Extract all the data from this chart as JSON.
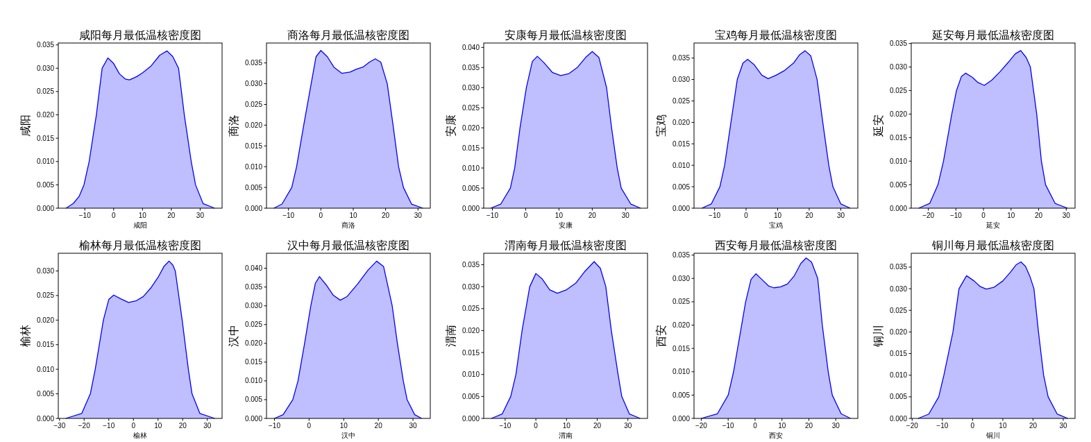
{
  "chart_data": [
    {
      "type": "area",
      "title": "咸阳每月最低温核密度图",
      "xlabel": "咸阳",
      "ylabel": "咸阳",
      "xlim": [
        -19.2,
        37.6
      ],
      "ylim": [
        0,
        0.0354
      ],
      "xticks": [
        -10,
        0,
        10,
        20,
        30
      ],
      "yticks": [
        {
          "value": 0,
          "label": "0.000"
        },
        {
          "value": 0.005,
          "label": "0.005"
        },
        {
          "value": 0.01,
          "label": "0.010"
        },
        {
          "value": 0.015,
          "label": "0.015"
        },
        {
          "value": 0.02,
          "label": "0.020"
        },
        {
          "value": 0.025,
          "label": "0.025"
        },
        {
          "value": 0.03,
          "label": "0.030"
        },
        {
          "value": 0.035,
          "label": "0.035"
        }
      ],
      "x": [
        -16.5,
        -14,
        -12,
        -10.3,
        -8.5,
        -7,
        -6,
        -5,
        -4,
        -2,
        0,
        2,
        4,
        5.5,
        8,
        10,
        13,
        16,
        18.5,
        20.5,
        22.5,
        24.5,
        26.9,
        28.4,
        31,
        35
      ],
      "series": [
        {
          "color": "#0000ff",
          "values": [
            0,
            0.001,
            0.0025,
            0.005,
            0.01,
            0.016,
            0.02,
            0.025,
            0.03,
            0.0322,
            0.031,
            0.0288,
            0.0277,
            0.0275,
            0.0282,
            0.029,
            0.0305,
            0.0328,
            0.0337,
            0.0325,
            0.03,
            0.02,
            0.01,
            0.005,
            0.001,
            0
          ]
        }
      ]
    },
    {
      "type": "area",
      "title": "商洛每月最低温核密度图",
      "xlabel": "商洛",
      "ylabel": "商洛",
      "xlim": [
        -16.8,
        33.8
      ],
      "ylim": [
        0,
        0.0398
      ],
      "xticks": [
        -10,
        0,
        10,
        20,
        30
      ],
      "yticks": [
        {
          "value": 0,
          "label": "0.000"
        },
        {
          "value": 0.005,
          "label": "0.005"
        },
        {
          "value": 0.01,
          "label": "0.010"
        },
        {
          "value": 0.015,
          "label": "0.015"
        },
        {
          "value": 0.02,
          "label": "0.020"
        },
        {
          "value": 0.025,
          "label": "0.025"
        },
        {
          "value": 0.03,
          "label": "0.030"
        },
        {
          "value": 0.035,
          "label": "0.035"
        }
      ],
      "x": [
        -14.5,
        -12,
        -9,
        -7.5,
        -5.3,
        -3,
        -1.5,
        0,
        2,
        4,
        6.5,
        9,
        11,
        13,
        15,
        16.8,
        18.5,
        20.5,
        22.3,
        24,
        25.5,
        28,
        31.5
      ],
      "series": [
        {
          "color": "#0000ff",
          "values": [
            0,
            0.001,
            0.005,
            0.01,
            0.02,
            0.03,
            0.0365,
            0.038,
            0.0365,
            0.034,
            0.0325,
            0.0328,
            0.0335,
            0.034,
            0.0352,
            0.036,
            0.0352,
            0.03,
            0.02,
            0.01,
            0.005,
            0.001,
            0
          ]
        }
      ]
    },
    {
      "type": "area",
      "title": "安康每月最低温核密度图",
      "xlabel": "安康",
      "ylabel": "安康",
      "xlim": [
        -12.6,
        36.6
      ],
      "ylim": [
        0,
        0.0411
      ],
      "xticks": [
        -10,
        0,
        10,
        20,
        30
      ],
      "yticks": [
        {
          "value": 0,
          "label": "0.000"
        },
        {
          "value": 0.005,
          "label": "0.005"
        },
        {
          "value": 0.01,
          "label": "0.010"
        },
        {
          "value": 0.015,
          "label": "0.015"
        },
        {
          "value": 0.02,
          "label": "0.020"
        },
        {
          "value": 0.025,
          "label": "0.025"
        },
        {
          "value": 0.03,
          "label": "0.030"
        },
        {
          "value": 0.035,
          "label": "0.035"
        },
        {
          "value": 0.04,
          "label": "0.040"
        }
      ],
      "x": [
        -10.5,
        -7.5,
        -4.6,
        -3.3,
        -1.7,
        0.2,
        2,
        3.5,
        5.5,
        8,
        10.5,
        13,
        15.5,
        18,
        20,
        22,
        24.3,
        25.8,
        27.5,
        28.7,
        31.6,
        34.5
      ],
      "series": [
        {
          "color": "#0000ff",
          "values": [
            0,
            0.001,
            0.005,
            0.01,
            0.02,
            0.03,
            0.0365,
            0.0378,
            0.0362,
            0.0338,
            0.033,
            0.0335,
            0.035,
            0.0375,
            0.039,
            0.0375,
            0.03,
            0.02,
            0.01,
            0.005,
            0.001,
            0
          ]
        }
      ]
    },
    {
      "type": "area",
      "title": "宝鸡每月最低温核密度图",
      "xlabel": "宝鸡",
      "ylabel": "宝鸡",
      "xlim": [
        -16.5,
        35.4
      ],
      "ylim": [
        0,
        0.0385
      ],
      "xticks": [
        -10,
        0,
        10,
        20,
        30
      ],
      "yticks": [
        {
          "value": 0,
          "label": "0.000"
        },
        {
          "value": 0.005,
          "label": "0.005"
        },
        {
          "value": 0.01,
          "label": "0.010"
        },
        {
          "value": 0.015,
          "label": "0.015"
        },
        {
          "value": 0.02,
          "label": "0.020"
        },
        {
          "value": 0.025,
          "label": "0.025"
        },
        {
          "value": 0.03,
          "label": "0.030"
        },
        {
          "value": 0.035,
          "label": "0.035"
        }
      ],
      "x": [
        -14,
        -11,
        -8.3,
        -6.8,
        -4.8,
        -2.8,
        -1,
        0.5,
        2.5,
        5,
        7,
        9.5,
        12,
        15,
        17,
        18.7,
        20.5,
        22.5,
        24.3,
        26.2,
        27.5,
        30,
        33
      ],
      "series": [
        {
          "color": "#0000ff",
          "values": [
            0,
            0.001,
            0.005,
            0.01,
            0.02,
            0.03,
            0.0338,
            0.0347,
            0.0335,
            0.031,
            0.0302,
            0.031,
            0.032,
            0.0338,
            0.0358,
            0.0367,
            0.0355,
            0.03,
            0.02,
            0.01,
            0.005,
            0.001,
            0
          ]
        }
      ]
    },
    {
      "type": "area",
      "title": "延安每月最低温核密度图",
      "xlabel": "延安",
      "ylabel": "延安",
      "xlim": [
        -26.2,
        33.2
      ],
      "ylim": [
        0,
        0.0351
      ],
      "xticks": [
        -20,
        -10,
        0,
        10,
        20,
        30
      ],
      "yticks": [
        {
          "value": 0,
          "label": "0.000"
        },
        {
          "value": 0.005,
          "label": "0.005"
        },
        {
          "value": 0.01,
          "label": "0.010"
        },
        {
          "value": 0.015,
          "label": "0.015"
        },
        {
          "value": 0.02,
          "label": "0.020"
        },
        {
          "value": 0.025,
          "label": "0.025"
        },
        {
          "value": 0.03,
          "label": "0.030"
        },
        {
          "value": 0.035,
          "label": "0.035"
        }
      ],
      "x": [
        -23.5,
        -19.5,
        -16.5,
        -14.5,
        -11.5,
        -9.8,
        -8,
        -6.5,
        -4,
        -2,
        0.3,
        3,
        6,
        9,
        11.5,
        13.5,
        15.5,
        17,
        19.3,
        21,
        22.5,
        26,
        30.5
      ],
      "series": [
        {
          "color": "#0000ff",
          "values": [
            0,
            0.001,
            0.005,
            0.01,
            0.02,
            0.025,
            0.028,
            0.0287,
            0.0278,
            0.0267,
            0.0261,
            0.0272,
            0.029,
            0.031,
            0.0328,
            0.0335,
            0.032,
            0.03,
            0.02,
            0.01,
            0.005,
            0.001,
            0
          ]
        }
      ]
    },
    {
      "type": "area",
      "title": "榆林每月最低温核密度图",
      "xlabel": "榆林",
      "ylabel": "榆林",
      "xlim": [
        -30.5,
        36
      ],
      "ylim": [
        0,
        0.0336
      ],
      "xticks": [
        -30,
        -20,
        -10,
        0,
        10,
        20,
        30
      ],
      "yticks": [
        {
          "value": 0,
          "label": "0.000"
        },
        {
          "value": 0.005,
          "label": "0.005"
        },
        {
          "value": 0.01,
          "label": "0.010"
        },
        {
          "value": 0.015,
          "label": "0.015"
        },
        {
          "value": 0.02,
          "label": "0.020"
        },
        {
          "value": 0.025,
          "label": "0.025"
        },
        {
          "value": 0.03,
          "label": "0.030"
        }
      ],
      "x": [
        -27.5,
        -21,
        -17.5,
        -15.5,
        -12.2,
        -10,
        -8,
        -5,
        -2,
        1,
        4,
        7,
        10,
        12.5,
        14.5,
        16,
        17,
        19.8,
        22.3,
        23.8,
        27,
        33
      ],
      "series": [
        {
          "color": "#0000ff",
          "values": [
            0,
            0.001,
            0.005,
            0.01,
            0.02,
            0.0242,
            0.0251,
            0.0243,
            0.0236,
            0.0239,
            0.0248,
            0.0265,
            0.0287,
            0.031,
            0.032,
            0.0312,
            0.03,
            0.02,
            0.01,
            0.005,
            0.001,
            0
          ]
        }
      ]
    },
    {
      "type": "area",
      "title": "汉中每月最低温核密度图",
      "xlabel": "汉中",
      "ylabel": "汉中",
      "xlim": [
        -12.3,
        35
      ],
      "ylim": [
        0,
        0.044
      ],
      "xticks": [
        -10,
        0,
        10,
        20,
        30
      ],
      "yticks": [
        {
          "value": 0,
          "label": "0.000"
        },
        {
          "value": 0.005,
          "label": "0.005"
        },
        {
          "value": 0.01,
          "label": "0.010"
        },
        {
          "value": 0.015,
          "label": "0.015"
        },
        {
          "value": 0.02,
          "label": "0.020"
        },
        {
          "value": 0.025,
          "label": "0.025"
        },
        {
          "value": 0.03,
          "label": "0.030"
        },
        {
          "value": 0.035,
          "label": "0.035"
        },
        {
          "value": 0.04,
          "label": "0.040"
        }
      ],
      "x": [
        -10,
        -7.5,
        -4.7,
        -3.2,
        -1.3,
        0.5,
        1.8,
        3,
        5,
        7,
        9,
        11,
        14,
        17,
        19.5,
        21.5,
        24,
        25.5,
        27.2,
        28.3,
        30.5,
        32.5
      ],
      "series": [
        {
          "color": "#0000ff",
          "values": [
            0,
            0.001,
            0.005,
            0.01,
            0.02,
            0.03,
            0.036,
            0.0378,
            0.0355,
            0.0328,
            0.0315,
            0.0325,
            0.0358,
            0.0395,
            0.0419,
            0.0405,
            0.03,
            0.02,
            0.01,
            0.005,
            0.001,
            0
          ]
        }
      ]
    },
    {
      "type": "area",
      "title": "渭南每月最低温核密度图",
      "xlabel": "渭南",
      "ylabel": "渭南",
      "xlim": [
        -17,
        36.4
      ],
      "ylim": [
        0,
        0.0376
      ],
      "xticks": [
        -10,
        0,
        10,
        20,
        30
      ],
      "yticks": [
        {
          "value": 0,
          "label": "0.000"
        },
        {
          "value": 0.005,
          "label": "0.005"
        },
        {
          "value": 0.01,
          "label": "0.010"
        },
        {
          "value": 0.015,
          "label": "0.015"
        },
        {
          "value": 0.02,
          "label": "0.020"
        },
        {
          "value": 0.025,
          "label": "0.025"
        },
        {
          "value": 0.03,
          "label": "0.030"
        },
        {
          "value": 0.035,
          "label": "0.035"
        }
      ],
      "x": [
        -14.5,
        -11,
        -8.2,
        -6.5,
        -4.5,
        -2,
        0,
        2,
        4.5,
        7,
        10,
        13,
        16,
        19,
        21,
        22.8,
        24.6,
        26.8,
        28,
        30.5,
        34
      ],
      "series": [
        {
          "color": "#0000ff",
          "values": [
            0,
            0.001,
            0.005,
            0.01,
            0.02,
            0.03,
            0.033,
            0.0318,
            0.0293,
            0.0285,
            0.0293,
            0.0308,
            0.0335,
            0.0357,
            0.0342,
            0.03,
            0.02,
            0.01,
            0.005,
            0.001,
            0
          ]
        }
      ]
    },
    {
      "type": "area",
      "title": "西安每月最低温核密度图",
      "xlabel": "西安",
      "ylabel": "西安",
      "xlim": [
        -22.7,
        38.2
      ],
      "ylim": [
        0,
        0.0354
      ],
      "xticks": [
        -20,
        -10,
        0,
        10,
        20,
        30
      ],
      "yticks": [
        {
          "value": 0,
          "label": "0.000"
        },
        {
          "value": 0.005,
          "label": "0.005"
        },
        {
          "value": 0.01,
          "label": "0.010"
        },
        {
          "value": 0.015,
          "label": "0.015"
        },
        {
          "value": 0.02,
          "label": "0.020"
        },
        {
          "value": 0.025,
          "label": "0.025"
        },
        {
          "value": 0.03,
          "label": "0.030"
        },
        {
          "value": 0.035,
          "label": "0.035"
        }
      ],
      "x": [
        -20,
        -14,
        -10,
        -8,
        -5,
        -3.5,
        -1.5,
        0.3,
        2.5,
        5,
        7,
        9.5,
        12,
        14.5,
        17,
        19,
        21,
        23.3,
        25,
        27.2,
        28.7,
        32,
        35.5
      ],
      "series": [
        {
          "color": "#0000ff",
          "values": [
            0,
            0.001,
            0.005,
            0.01,
            0.02,
            0.025,
            0.0298,
            0.031,
            0.0298,
            0.0284,
            0.028,
            0.0282,
            0.0288,
            0.0305,
            0.0332,
            0.0344,
            0.0335,
            0.03,
            0.02,
            0.01,
            0.005,
            0.001,
            0
          ]
        }
      ]
    },
    {
      "type": "area",
      "title": "铜川每月最低温核密度图",
      "xlabel": "铜川",
      "ylabel": "铜川",
      "xlim": [
        -20.3,
        33.9
      ],
      "ylim": [
        0,
        0.0382
      ],
      "xticks": [
        -20,
        -10,
        0,
        10,
        20,
        30
      ],
      "yticks": [
        {
          "value": 0,
          "label": "0.000"
        },
        {
          "value": 0.005,
          "label": "0.005"
        },
        {
          "value": 0.01,
          "label": "0.010"
        },
        {
          "value": 0.015,
          "label": "0.015"
        },
        {
          "value": 0.02,
          "label": "0.020"
        },
        {
          "value": 0.025,
          "label": "0.025"
        },
        {
          "value": 0.03,
          "label": "0.030"
        },
        {
          "value": 0.035,
          "label": "0.035"
        }
      ],
      "x": [
        -18,
        -14.5,
        -11.2,
        -9.5,
        -6.5,
        -4.5,
        -2,
        0.5,
        2.5,
        4.5,
        7,
        10,
        12.5,
        14.5,
        16,
        17.5,
        19,
        20.3,
        21.8,
        23.5,
        25,
        28,
        31.5
      ],
      "series": [
        {
          "color": "#0000ff",
          "values": [
            0,
            0.001,
            0.005,
            0.01,
            0.02,
            0.03,
            0.033,
            0.0318,
            0.0305,
            0.0299,
            0.0303,
            0.0318,
            0.0338,
            0.0356,
            0.0362,
            0.0352,
            0.0328,
            0.03,
            0.02,
            0.01,
            0.005,
            0.001,
            0
          ]
        }
      ]
    }
  ]
}
